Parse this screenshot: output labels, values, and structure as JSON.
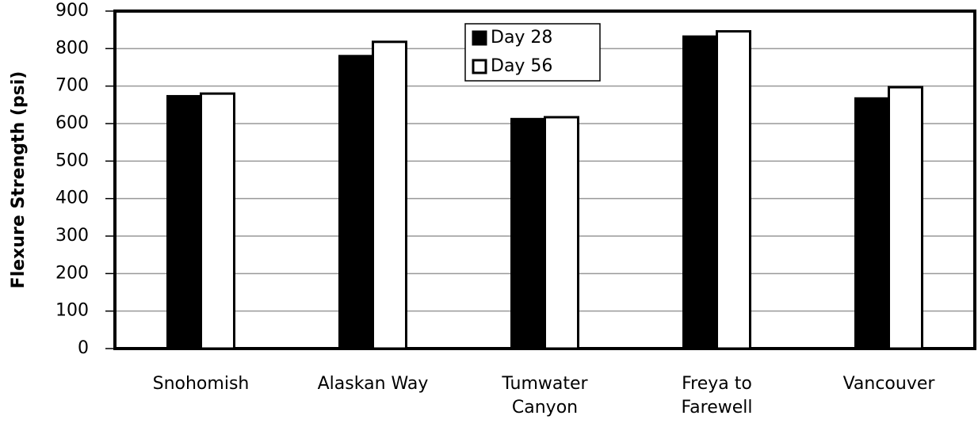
{
  "chart_data": {
    "type": "bar",
    "y_label": "Flexure Strength (psi)",
    "categories": [
      "Snohomish",
      "Alaskan Way",
      "Tumwater Canyon",
      "Freya to Farewell",
      "Vancouver"
    ],
    "series": [
      {
        "name": "Day 28",
        "color": "#000000",
        "values": [
          673,
          780,
          612,
          832,
          667
        ]
      },
      {
        "name": "Day 56",
        "color": "#ffffff",
        "values": [
          680,
          818,
          617,
          846,
          697
        ]
      }
    ],
    "ylim": [
      0,
      900
    ],
    "yticks": [
      0,
      100,
      200,
      300,
      400,
      500,
      600,
      700,
      800,
      900
    ],
    "grid": true,
    "legend": "top-center"
  }
}
